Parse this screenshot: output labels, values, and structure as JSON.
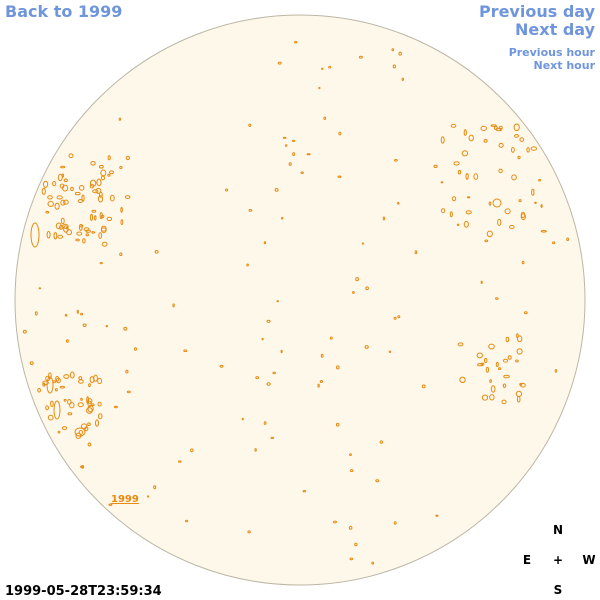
{
  "links": {
    "back": "Back to 1999",
    "previous_day": "Previous day",
    "next_day": "Next day",
    "previous_hour": "Previous hour",
    "next_hour": "Next hour"
  },
  "marker_label": "1999",
  "compass": {
    "n": "N",
    "e": "E",
    "center": "+",
    "w": "W",
    "s": "S"
  },
  "timestamp": "1999-05-28T23:59:34"
}
